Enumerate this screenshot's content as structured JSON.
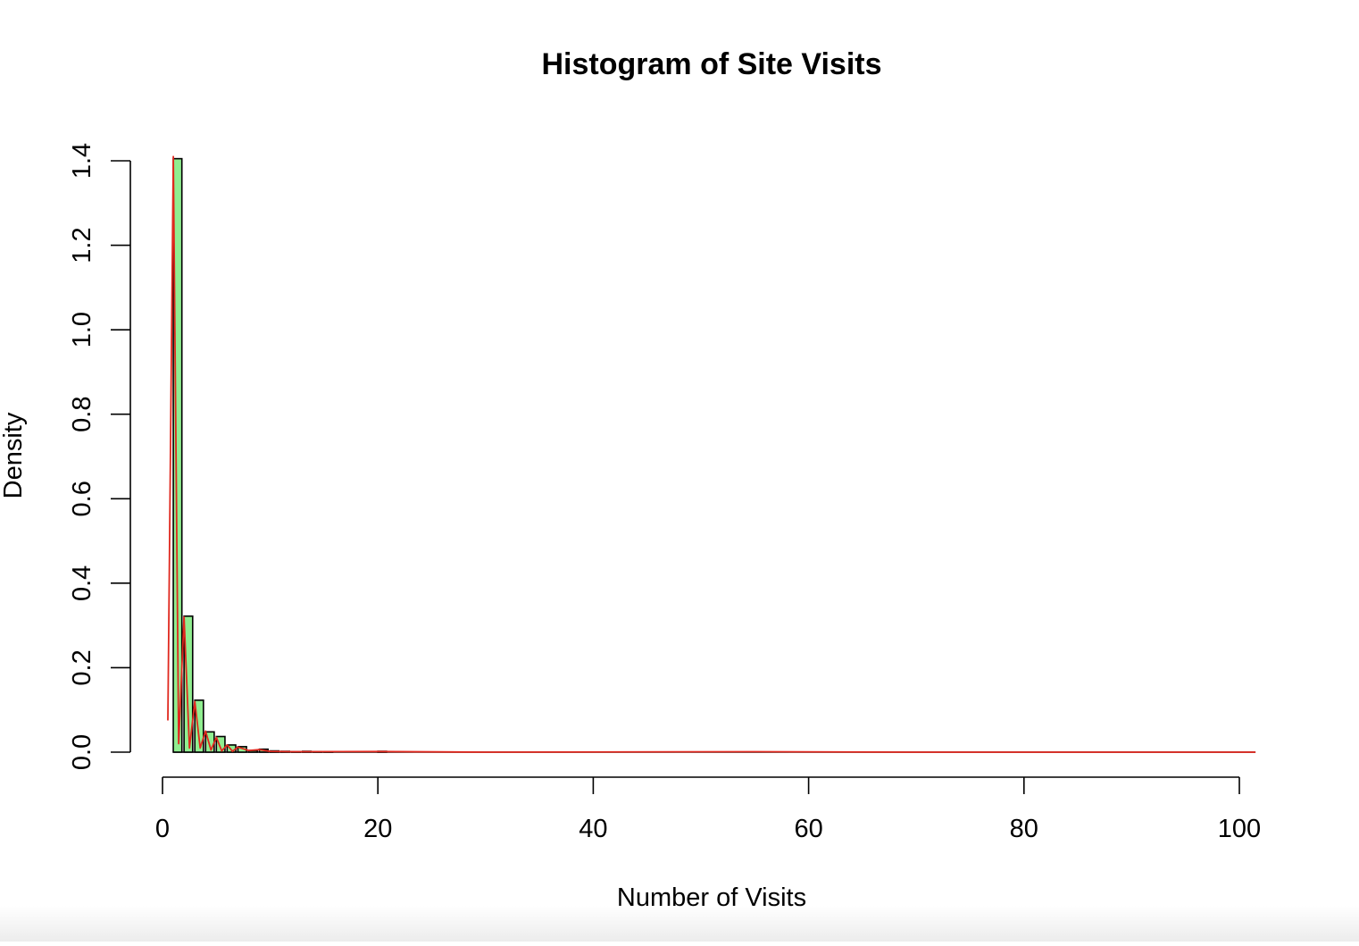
{
  "chart_data": {
    "type": "bar",
    "title": "Histogram of Site Visits",
    "xlabel": "Number of Visits",
    "ylabel": "Density",
    "xlim": [
      0,
      100
    ],
    "ylim": [
      0,
      1.4
    ],
    "x_ticks": [
      "0",
      "20",
      "40",
      "60",
      "80",
      "100"
    ],
    "y_ticks": [
      "0.0",
      "0.2",
      "0.4",
      "0.6",
      "0.8",
      "1.0",
      "1.2",
      "1.4"
    ],
    "bin_width": 0.8,
    "bins": [
      {
        "x": 1,
        "density": 1.405
      },
      {
        "x": 2,
        "density": 0.322
      },
      {
        "x": 3,
        "density": 0.123
      },
      {
        "x": 4,
        "density": 0.048
      },
      {
        "x": 5,
        "density": 0.037
      },
      {
        "x": 6,
        "density": 0.017
      },
      {
        "x": 7,
        "density": 0.013
      },
      {
        "x": 8,
        "density": 0.004
      },
      {
        "x": 9,
        "density": 0.007
      },
      {
        "x": 10,
        "density": 0.003
      },
      {
        "x": 11,
        "density": 0.002
      },
      {
        "x": 12,
        "density": 0.001
      },
      {
        "x": 13,
        "density": 0.002
      },
      {
        "x": 14,
        "density": 0.001
      },
      {
        "x": 15,
        "density": 0.001
      },
      {
        "x": 20,
        "density": 0.002
      }
    ],
    "density_curve": [
      [
        0.5,
        0.075
      ],
      [
        1.0,
        1.41
      ],
      [
        1.5,
        0.02
      ],
      [
        2.0,
        0.32
      ],
      [
        2.5,
        0.01
      ],
      [
        3.0,
        0.12
      ],
      [
        3.5,
        0.01
      ],
      [
        4.0,
        0.05
      ],
      [
        4.5,
        0.005
      ],
      [
        5.0,
        0.035
      ],
      [
        5.5,
        0.003
      ],
      [
        6.0,
        0.017
      ],
      [
        6.5,
        0.002
      ],
      [
        7.0,
        0.012
      ],
      [
        8.0,
        0.004
      ],
      [
        9.0,
        0.006
      ],
      [
        10.0,
        0.002
      ],
      [
        12.0,
        0.001
      ],
      [
        20.0,
        0.0015
      ],
      [
        30.0,
        0.0
      ],
      [
        55.0,
        0.001
      ],
      [
        70.0,
        0.0
      ],
      [
        101.5,
        0.0
      ]
    ],
    "colors": {
      "bar_fill": "#90ee90",
      "bar_stroke": "#000000",
      "density_line": "#e0281e"
    },
    "grid": false,
    "legend": "none"
  }
}
